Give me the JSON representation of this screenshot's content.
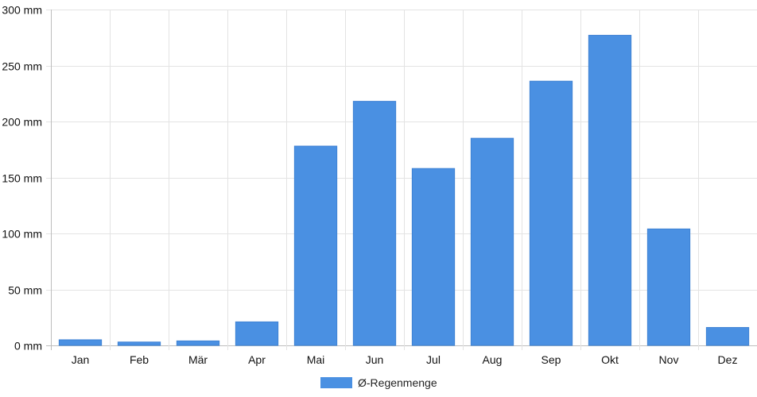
{
  "chart_data": {
    "type": "bar",
    "categories": [
      "Jan",
      "Feb",
      "Mär",
      "Apr",
      "Mai",
      "Jun",
      "Jul",
      "Aug",
      "Sep",
      "Okt",
      "Nov",
      "Dez"
    ],
    "series": [
      {
        "name": "Ø-Regenmenge",
        "values": [
          5,
          3,
          4,
          21,
          178,
          218,
          158,
          185,
          236,
          277,
          104,
          16
        ],
        "color": "#4a90e2"
      }
    ],
    "y_ticks": [
      "0 mm",
      "50 mm",
      "100 mm",
      "150 mm",
      "200 mm",
      "250 mm",
      "300 mm"
    ],
    "ylim": [
      0,
      300
    ],
    "y_unit": "mm",
    "grid": true,
    "legend_position": "bottom"
  }
}
